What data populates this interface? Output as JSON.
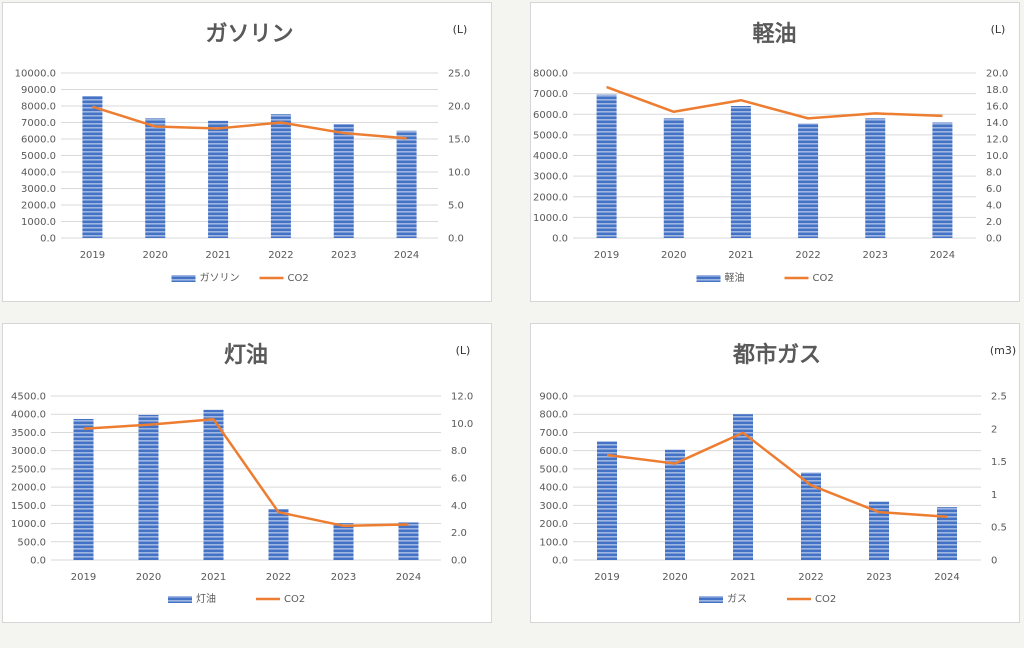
{
  "chart_data": [
    {
      "type": "bar",
      "title": "ガソリン",
      "unit": "(L)",
      "categories": [
        "2019",
        "2020",
        "2021",
        "2022",
        "2023",
        "2024"
      ],
      "series": [
        {
          "name": "ガソリン",
          "type": "bar",
          "axis": "left",
          "values": [
            8600,
            7250,
            7100,
            7500,
            6900,
            6500
          ]
        },
        {
          "name": "CO2",
          "type": "line",
          "axis": "right",
          "values": [
            19.9,
            16.9,
            16.6,
            17.5,
            15.9,
            15.1
          ]
        }
      ],
      "ylim_left": [
        0,
        10000
      ],
      "yticks_left": [
        "0.0",
        "1000.0",
        "2000.0",
        "3000.0",
        "4000.0",
        "5000.0",
        "6000.0",
        "7000.0",
        "8000.0",
        "9000.0",
        "10000.0"
      ],
      "ylim_right": [
        0,
        25
      ],
      "yticks_right": [
        "0.0",
        "5.0",
        "10.0",
        "15.0",
        "20.0",
        "25.0"
      ],
      "grid": true,
      "legend": "bottom",
      "colors": {
        "bar": "#4472c4",
        "line": "#ed7d31"
      }
    },
    {
      "type": "bar",
      "title": "軽油",
      "unit": "(L)",
      "categories": [
        "2019",
        "2020",
        "2021",
        "2022",
        "2023",
        "2024"
      ],
      "series": [
        {
          "name": "軽油",
          "type": "bar",
          "axis": "left",
          "values": [
            6950,
            5800,
            6400,
            5550,
            5800,
            5600
          ]
        },
        {
          "name": "CO2",
          "type": "line",
          "axis": "right",
          "values": [
            18.3,
            15.3,
            16.7,
            14.5,
            15.1,
            14.8
          ]
        }
      ],
      "ylim_left": [
        0,
        8000
      ],
      "yticks_left": [
        "0.0",
        "1000.0",
        "2000.0",
        "3000.0",
        "4000.0",
        "5000.0",
        "6000.0",
        "7000.0",
        "8000.0"
      ],
      "ylim_right": [
        0,
        20
      ],
      "yticks_right": [
        "0.0",
        "2.0",
        "4.0",
        "6.0",
        "8.0",
        "10.0",
        "12.0",
        "14.0",
        "16.0",
        "18.0",
        "20.0"
      ],
      "grid": true,
      "legend": "bottom",
      "colors": {
        "bar": "#4472c4",
        "line": "#ed7d31"
      }
    },
    {
      "type": "bar",
      "title": "灯油",
      "unit": "(L)",
      "categories": [
        "2019",
        "2020",
        "2021",
        "2022",
        "2023",
        "2024"
      ],
      "series": [
        {
          "name": "灯油",
          "type": "bar",
          "axis": "left",
          "values": [
            3870,
            3980,
            4120,
            1400,
            1010,
            1030
          ]
        },
        {
          "name": "CO2",
          "type": "line",
          "axis": "right",
          "values": [
            9.6,
            9.9,
            10.3,
            3.5,
            2.5,
            2.6
          ]
        }
      ],
      "ylim_left": [
        0,
        4500
      ],
      "yticks_left": [
        "0.0",
        "500.0",
        "1000.0",
        "1500.0",
        "2000.0",
        "2500.0",
        "3000.0",
        "3500.0",
        "4000.0",
        "4500.0"
      ],
      "ylim_right": [
        0,
        12
      ],
      "yticks_right": [
        "0.0",
        "2.0",
        "4.0",
        "6.0",
        "8.0",
        "10.0",
        "12.0"
      ],
      "grid": true,
      "legend": "bottom",
      "colors": {
        "bar": "#4472c4",
        "line": "#ed7d31"
      }
    },
    {
      "type": "bar",
      "title": "都市ガス",
      "unit": "(m3)",
      "categories": [
        "2019",
        "2020",
        "2021",
        "2022",
        "2023",
        "2024"
      ],
      "series": [
        {
          "name": "ガス",
          "type": "bar",
          "axis": "left",
          "values": [
            650,
            605,
            800,
            480,
            320,
            290
          ]
        },
        {
          "name": "CO2",
          "type": "line",
          "axis": "right",
          "values": [
            1.6,
            1.47,
            1.94,
            1.14,
            0.73,
            0.66
          ]
        }
      ],
      "ylim_left": [
        0,
        900
      ],
      "yticks_left": [
        "0.0",
        "100.0",
        "200.0",
        "300.0",
        "400.0",
        "500.0",
        "600.0",
        "700.0",
        "800.0",
        "900.0"
      ],
      "ylim_right": [
        0,
        2.5
      ],
      "yticks_right": [
        "0",
        "0.5",
        "1",
        "1.5",
        "2",
        "2.5"
      ],
      "grid": true,
      "legend": "bottom",
      "colors": {
        "bar": "#4472c4",
        "line": "#ed7d31"
      }
    }
  ]
}
